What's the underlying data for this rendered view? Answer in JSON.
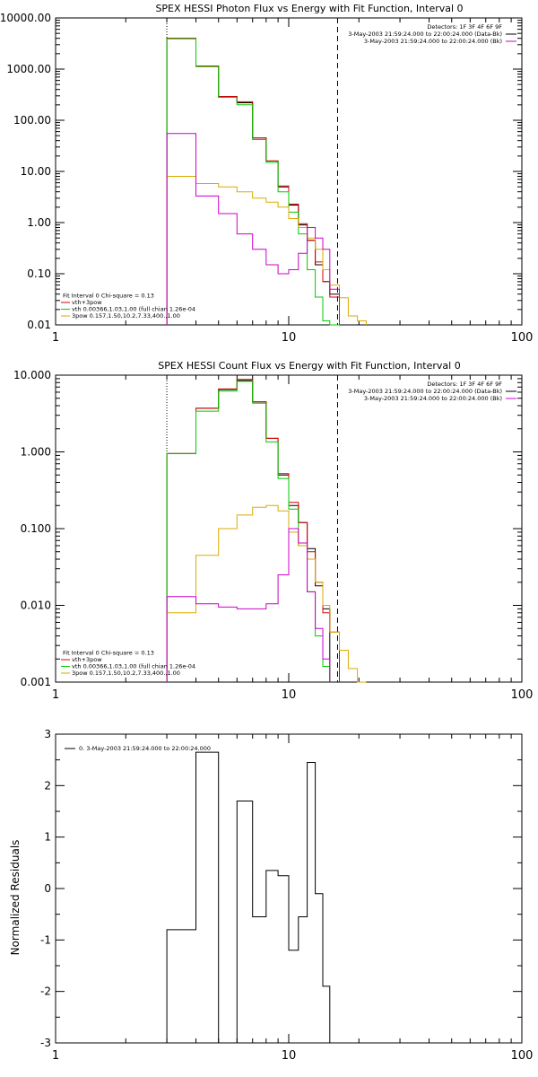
{
  "chart_data": [
    {
      "type": "line",
      "step": true,
      "title": "SPEX HESSI Photon Flux vs Energy with Fit Function, Interval 0",
      "xscale": "log",
      "yscale": "log",
      "xlim": [
        1,
        100
      ],
      "ylim": [
        0.01,
        10000
      ],
      "x_ticks": [
        {
          "v": 1,
          "label": "1"
        },
        {
          "v": 10,
          "label": "10"
        },
        {
          "v": 100,
          "label": "100"
        }
      ],
      "y_ticks": [
        {
          "v": 0.01,
          "label": "0.01"
        },
        {
          "v": 0.1,
          "label": "0.10"
        },
        {
          "v": 1,
          "label": "1.00"
        },
        {
          "v": 10,
          "label": "10.00"
        },
        {
          "v": 100,
          "label": "100.00"
        },
        {
          "v": 1000,
          "label": "1000.00"
        },
        {
          "v": 10000,
          "label": "10000.00"
        }
      ],
      "vlines": [
        {
          "x": 3,
          "style": "dotted"
        },
        {
          "x": 16.2,
          "style": "dashed"
        }
      ],
      "edges": [
        3,
        4,
        5,
        6,
        7,
        8,
        9,
        10,
        11,
        12,
        13,
        14,
        15,
        16.5,
        18,
        19.7,
        21.5
      ],
      "legend_top_right": [
        {
          "text": "Detectors: 1F 3F 4F 6F 9F",
          "color": "#000000",
          "line": false
        },
        {
          "text": "3-May-2003 21:59:24.000 to 22:00:24.000 (Data-Bk)",
          "color": "#000000",
          "line": true
        },
        {
          "text": "3-May-2003 21:59:24.000 to 22:00:24.000 (Bk)",
          "color": "#cc00cc",
          "line": true
        }
      ],
      "legend_bottom_left": [
        {
          "text": "Fit Interval  0    Chi-square = 0.13",
          "color": "#000000",
          "line": false
        },
        {
          "text": "vth+3pow",
          "color": "#dd0000",
          "line": true
        },
        {
          "text": "vth 0.00366,1.03,1.00  (full chian 1.26e-04",
          "color": "#00cc00",
          "line": true
        },
        {
          "text": "3pow 0.157,1.50,10.2,7.33,400.,1.00",
          "color": "#ddaa00",
          "line": true
        }
      ],
      "series": [
        {
          "color": "#000000",
          "values": [
            4000,
            1150,
            290,
            220,
            45,
            16,
            5,
            2.2,
            0.9,
            0.45,
            0.15,
            0.07,
            0.04,
            null,
            null,
            null
          ]
        },
        {
          "color": "#dd0000",
          "values": [
            4000,
            1150,
            290,
            230,
            45,
            16,
            5.2,
            2.3,
            0.95,
            0.45,
            0.17,
            0.07,
            0.035,
            null,
            null,
            null
          ]
        },
        {
          "color": "#00cc00",
          "values": [
            3900,
            1120,
            280,
            200,
            42,
            15,
            4,
            1.6,
            0.6,
            0.12,
            0.035,
            0.012,
            0.008,
            null,
            null,
            null
          ]
        },
        {
          "color": "#ddaa00",
          "values": [
            8,
            5.8,
            5,
            4,
            3,
            2.5,
            2,
            1.2,
            0.8,
            0.5,
            0.3,
            0.12,
            0.06,
            0.034,
            0.015,
            0.012
          ]
        },
        {
          "color": "#cc00cc",
          "values": [
            55,
            3.3,
            1.5,
            0.6,
            0.3,
            0.15,
            0.1,
            0.12,
            0.25,
            0.8,
            0.5,
            0.3,
            0.05,
            null,
            null,
            null
          ]
        }
      ]
    },
    {
      "type": "line",
      "step": true,
      "title": "SPEX HESSI Count Flux vs Energy with Fit Function, Interval 0",
      "xscale": "log",
      "yscale": "log",
      "xlim": [
        1,
        100
      ],
      "ylim": [
        0.001,
        10
      ],
      "x_ticks": [
        {
          "v": 1,
          "label": "1"
        },
        {
          "v": 10,
          "label": "10"
        },
        {
          "v": 100,
          "label": "100"
        }
      ],
      "y_ticks": [
        {
          "v": 0.001,
          "label": "0.001"
        },
        {
          "v": 0.01,
          "label": "0.010"
        },
        {
          "v": 0.1,
          "label": "0.100"
        },
        {
          "v": 1,
          "label": "1.000"
        },
        {
          "v": 10,
          "label": "10.000"
        }
      ],
      "vlines": [
        {
          "x": 3,
          "style": "dotted"
        },
        {
          "x": 16.2,
          "style": "dashed"
        }
      ],
      "edges": [
        3,
        4,
        5,
        6,
        7,
        8,
        9,
        10,
        11,
        12,
        13,
        14,
        15,
        16.5,
        18,
        19.7,
        21.5
      ],
      "legend_top_right": [
        {
          "text": "Detectors: 1F 3F 4F 6F 9F",
          "color": "#000000",
          "line": false
        },
        {
          "text": "3-May-2003 21:59:24.000 to 22:00:24.000 (Data-Bk)",
          "color": "#000000",
          "line": true
        },
        {
          "text": "3-May-2003 21:59:24.000 to 22:00:24.000 (Bk)",
          "color": "#cc00cc",
          "line": true
        }
      ],
      "legend_bottom_left": [
        {
          "text": "Fit Interval  0    Chi-square = 0.13",
          "color": "#000000",
          "line": false
        },
        {
          "text": "vth+3pow",
          "color": "#dd0000",
          "line": true
        },
        {
          "text": "vth 0.00366,1.03,1.00  (full chian 1.26e-04",
          "color": "#00cc00",
          "line": true
        },
        {
          "text": "3pow 0.157,1.50,10.2,7.33,400.,1.00",
          "color": "#ddaa00",
          "line": true
        }
      ],
      "series": [
        {
          "color": "#000000",
          "values": [
            0.95,
            3.7,
            6.5,
            8.5,
            4.5,
            1.5,
            0.5,
            0.2,
            0.12,
            0.055,
            0.018,
            0.009,
            null,
            null,
            null,
            null
          ]
        },
        {
          "color": "#dd0000",
          "values": [
            0.95,
            3.7,
            6.6,
            8.8,
            4.5,
            1.5,
            0.52,
            0.22,
            0.12,
            0.05,
            0.02,
            0.008,
            0.0045,
            null,
            null,
            null
          ]
        },
        {
          "color": "#00cc00",
          "values": [
            0.95,
            3.4,
            6.2,
            8.3,
            4.3,
            1.35,
            0.45,
            0.18,
            0.06,
            0.015,
            0.004,
            0.0016,
            null,
            null,
            null,
            null
          ]
        },
        {
          "color": "#ddaa00",
          "values": [
            0.008,
            0.045,
            0.1,
            0.15,
            0.19,
            0.2,
            0.17,
            0.09,
            0.06,
            0.04,
            0.02,
            0.01,
            0.0045,
            0.0026,
            0.0015,
            0.001
          ]
        },
        {
          "color": "#cc00cc",
          "values": [
            0.013,
            0.0105,
            0.0095,
            0.009,
            0.009,
            0.0105,
            0.025,
            0.1,
            0.065,
            0.015,
            0.005,
            0.002,
            null,
            null,
            null,
            null
          ]
        }
      ]
    },
    {
      "type": "line",
      "step": true,
      "title": "",
      "ylabel": "Normalized Residuals",
      "xscale": "log",
      "yscale": "linear",
      "xlim": [
        1,
        100
      ],
      "ylim": [
        -3,
        3
      ],
      "x_ticks": [
        {
          "v": 1,
          "label": "1"
        },
        {
          "v": 10,
          "label": "10"
        },
        {
          "v": 100,
          "label": "100"
        }
      ],
      "y_ticks": [
        {
          "v": -3,
          "label": "-3"
        },
        {
          "v": -2,
          "label": "-2"
        },
        {
          "v": -1,
          "label": "-1"
        },
        {
          "v": 0,
          "label": "0"
        },
        {
          "v": 1,
          "label": "1"
        },
        {
          "v": 2,
          "label": "2"
        },
        {
          "v": 3,
          "label": "3"
        }
      ],
      "vlines": [],
      "edges": [
        3,
        4,
        5,
        6,
        7,
        8,
        9,
        10,
        11,
        12,
        13,
        14,
        15,
        16.5
      ],
      "legend_top_right": [],
      "legend_bottom_left": [],
      "legend_top_left": [
        {
          "text": "0. 3-May-2003 21:59:24.000 to 22:00:24.000",
          "color": "#000000",
          "line": true
        }
      ],
      "series": [
        {
          "color": "#000000",
          "values": [
            -0.8,
            2.65,
            -3,
            1.7,
            -0.55,
            0.35,
            0.25,
            -1.2,
            -0.55,
            2.45,
            -0.1,
            -1.9,
            -3
          ],
          "drop_to_floor": true
        }
      ]
    }
  ]
}
